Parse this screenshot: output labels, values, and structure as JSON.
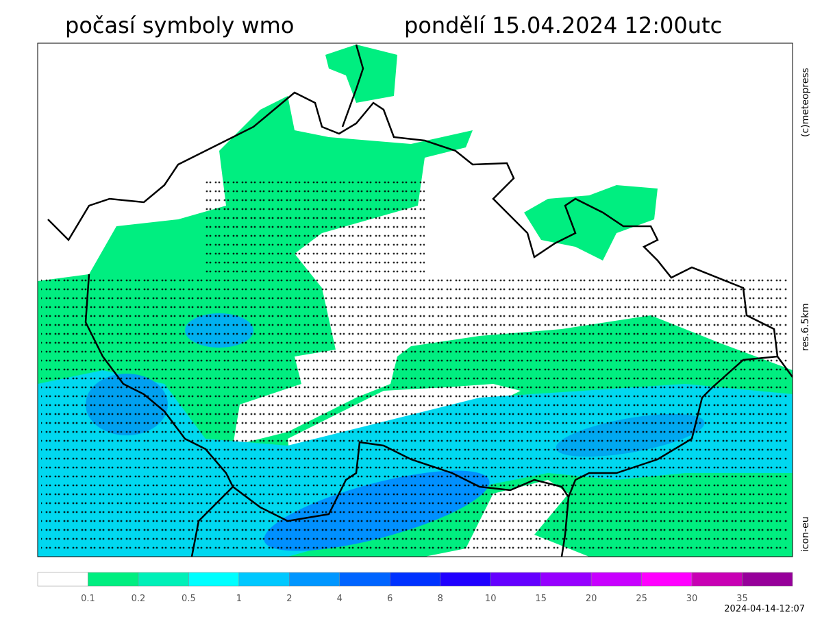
{
  "header": {
    "title": "počasí symboly wmo",
    "datetime": "pondělí 15.04.2024 12:00utc"
  },
  "side_labels": {
    "copyright": "(c)meteopress",
    "resolution": "res.6.5km",
    "model": "icon-eu"
  },
  "legend": {
    "labels": [
      "0.1",
      "0.2",
      "0.5",
      "1",
      "2",
      "4",
      "6",
      "8",
      "10",
      "15",
      "20",
      "25",
      "30",
      "35"
    ],
    "colors": [
      "#ffffff",
      "#00ee80",
      "#00f0b8",
      "#00ffff",
      "#00c8ff",
      "#0096ff",
      "#0064ff",
      "#0032ff",
      "#2000ff",
      "#6400ff",
      "#9600ff",
      "#c800ff",
      "#ff00ff",
      "#c800b4",
      "#96009a"
    ]
  },
  "footer": {
    "issued": "2024-04-14-12:07"
  }
}
